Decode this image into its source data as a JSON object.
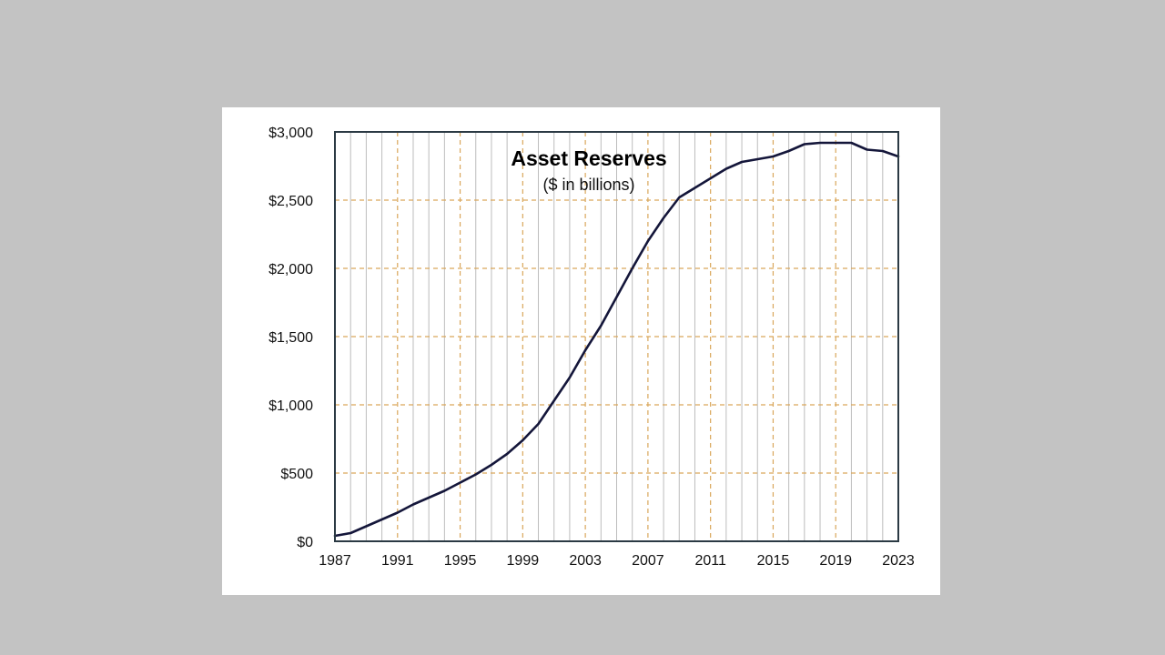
{
  "chart_data": {
    "type": "line",
    "title": "Asset Reserves",
    "subtitle": "($ in billions)",
    "xlabel": "",
    "ylabel": "",
    "xlim": [
      1987,
      2023
    ],
    "ylim": [
      0,
      3000
    ],
    "x_ticks": [
      1987,
      1991,
      1995,
      1999,
      2003,
      2007,
      2011,
      2015,
      2019,
      2023
    ],
    "x_tick_labels": [
      "1987",
      "1991",
      "1995",
      "1999",
      "2003",
      "2007",
      "2011",
      "2015",
      "2019",
      "2023"
    ],
    "y_ticks": [
      0,
      500,
      1000,
      1500,
      2000,
      2500,
      3000
    ],
    "y_tick_labels": [
      "$0",
      "$500",
      "$1,000",
      "$1,500",
      "$2,000",
      "$2,500",
      "$3,000"
    ],
    "grid": true,
    "minor_x_grid_step_years": 1,
    "series": [
      {
        "color": "#14163a",
        "x": [
          1987,
          1988,
          1989,
          1990,
          1991,
          1992,
          1993,
          1994,
          1995,
          1996,
          1997,
          1998,
          1999,
          2000,
          2001,
          2002,
          2003,
          2004,
          2005,
          2006,
          2007,
          2008,
          2009,
          2010,
          2011,
          2012,
          2013,
          2014,
          2015,
          2016,
          2017,
          2018,
          2019,
          2020,
          2021,
          2022,
          2023
        ],
        "values": [
          40,
          60,
          110,
          160,
          210,
          270,
          320,
          370,
          430,
          490,
          560,
          640,
          740,
          860,
          1030,
          1200,
          1400,
          1580,
          1790,
          2000,
          2200,
          2370,
          2520,
          2590,
          2660,
          2730,
          2780,
          2800,
          2820,
          2860,
          2910,
          2920,
          2920,
          2920,
          2870,
          2860,
          2820
        ]
      }
    ],
    "colors": {
      "major_grid": "#d9a65a",
      "minor_grid": "#bcbcbc",
      "frame": "#2b3a44",
      "line": "#14163a"
    }
  }
}
